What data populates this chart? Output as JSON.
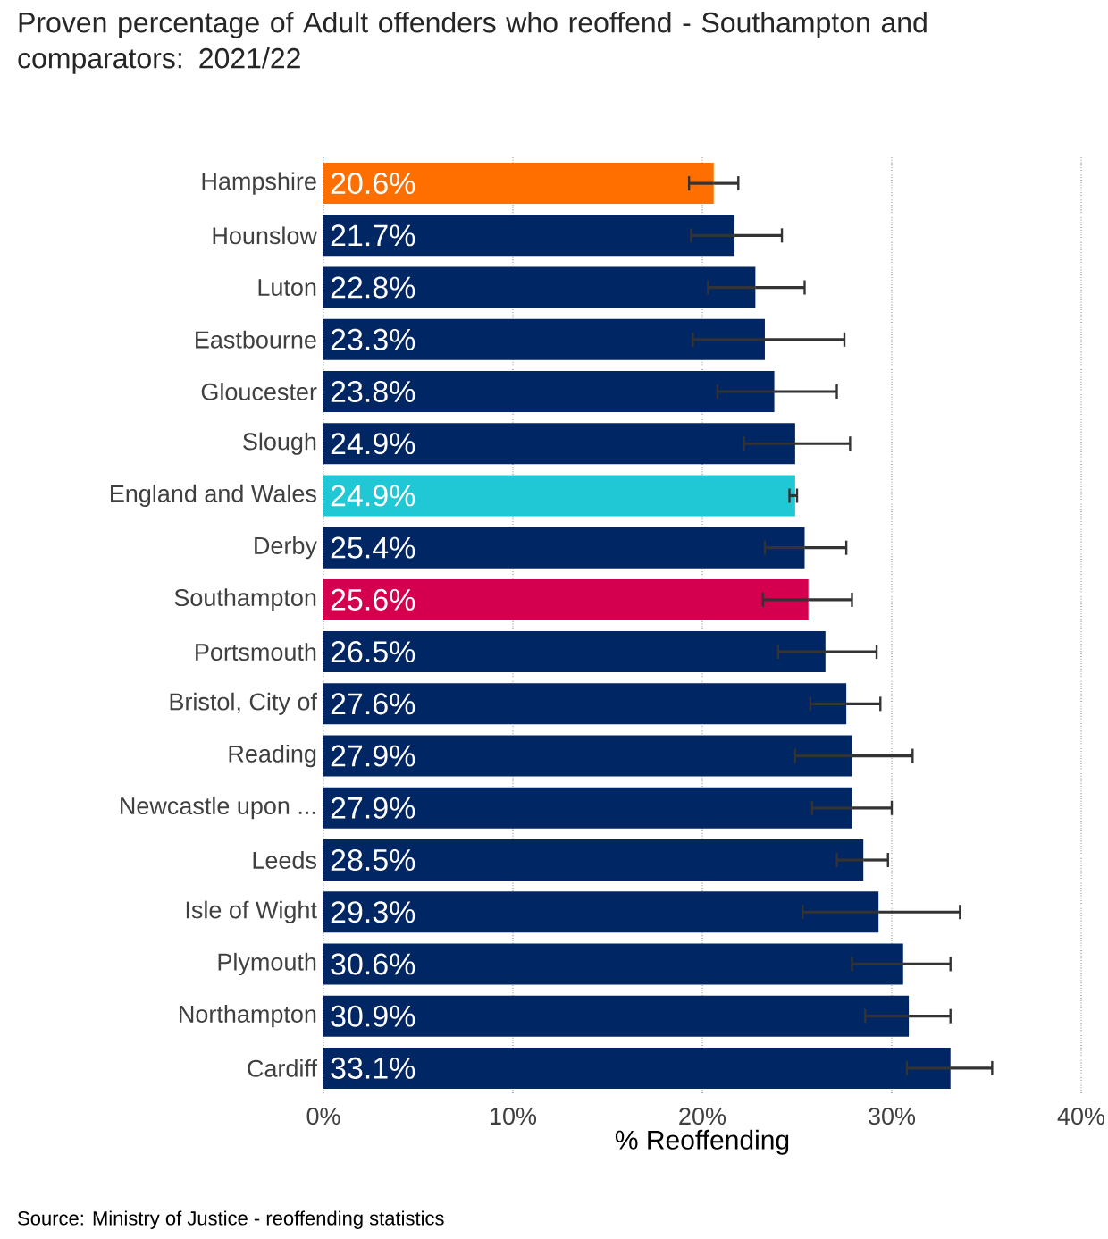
{
  "chart_data": {
    "type": "bar",
    "orientation": "horizontal",
    "title": "Proven percentage of Adult offenders who reoffend - Southampton and comparators: 2021/22",
    "categories": [
      "Hampshire",
      "Hounslow",
      "Luton",
      "Eastbourne",
      "Gloucester",
      "Slough",
      "England and Wales",
      "Derby",
      "Southampton",
      "Portsmouth",
      "Bristol, City of",
      "Reading",
      "Newcastle upon ...",
      "Leeds",
      "Isle of Wight",
      "Plymouth",
      "Northampton",
      "Cardiff"
    ],
    "values": [
      20.6,
      21.7,
      22.8,
      23.3,
      23.8,
      24.9,
      24.9,
      25.4,
      25.6,
      26.5,
      27.6,
      27.9,
      27.9,
      28.5,
      29.3,
      30.6,
      30.9,
      33.1
    ],
    "colors": [
      "#ff6f00",
      "#002663",
      "#002663",
      "#002663",
      "#002663",
      "#002663",
      "#1fc8d4",
      "#002663",
      "#d4004f",
      "#002663",
      "#002663",
      "#002663",
      "#002663",
      "#002663",
      "#002663",
      "#002663",
      "#002663",
      "#002663"
    ],
    "value_labels": [
      "20.6%",
      "21.7%",
      "22.8%",
      "23.3%",
      "23.8%",
      "24.9%",
      "24.9%",
      "25.4%",
      "25.6%",
      "26.5%",
      "27.6%",
      "27.9%",
      "27.9%",
      "28.5%",
      "29.3%",
      "30.6%",
      "30.9%",
      "33.1%"
    ],
    "errors": [
      [
        19.3,
        21.9
      ],
      [
        19.4,
        24.2
      ],
      [
        20.3,
        25.4
      ],
      [
        19.5,
        27.5
      ],
      [
        20.8,
        27.1
      ],
      [
        22.2,
        27.8
      ],
      [
        24.6,
        25.0
      ],
      [
        23.3,
        27.6
      ],
      [
        23.2,
        27.9
      ],
      [
        24.0,
        29.2
      ],
      [
        25.7,
        29.4
      ],
      [
        24.9,
        31.1
      ],
      [
        25.8,
        30.0
      ],
      [
        27.1,
        29.8
      ],
      [
        25.3,
        33.6
      ],
      [
        27.9,
        33.1
      ],
      [
        28.6,
        33.1
      ],
      [
        30.8,
        35.3
      ]
    ],
    "xlim": [
      0,
      40
    ],
    "xticks": [
      {
        "value": 0,
        "label": "0%"
      },
      {
        "value": 10,
        "label": "10%"
      },
      {
        "value": 20,
        "label": "20%"
      },
      {
        "value": 30,
        "label": "30%"
      },
      {
        "value": 40,
        "label": "40%"
      }
    ],
    "xlabel": "% Reoffending",
    "grid": "x",
    "annotations": [
      "Source: Ministry of Justice - reoffending statistics"
    ]
  }
}
